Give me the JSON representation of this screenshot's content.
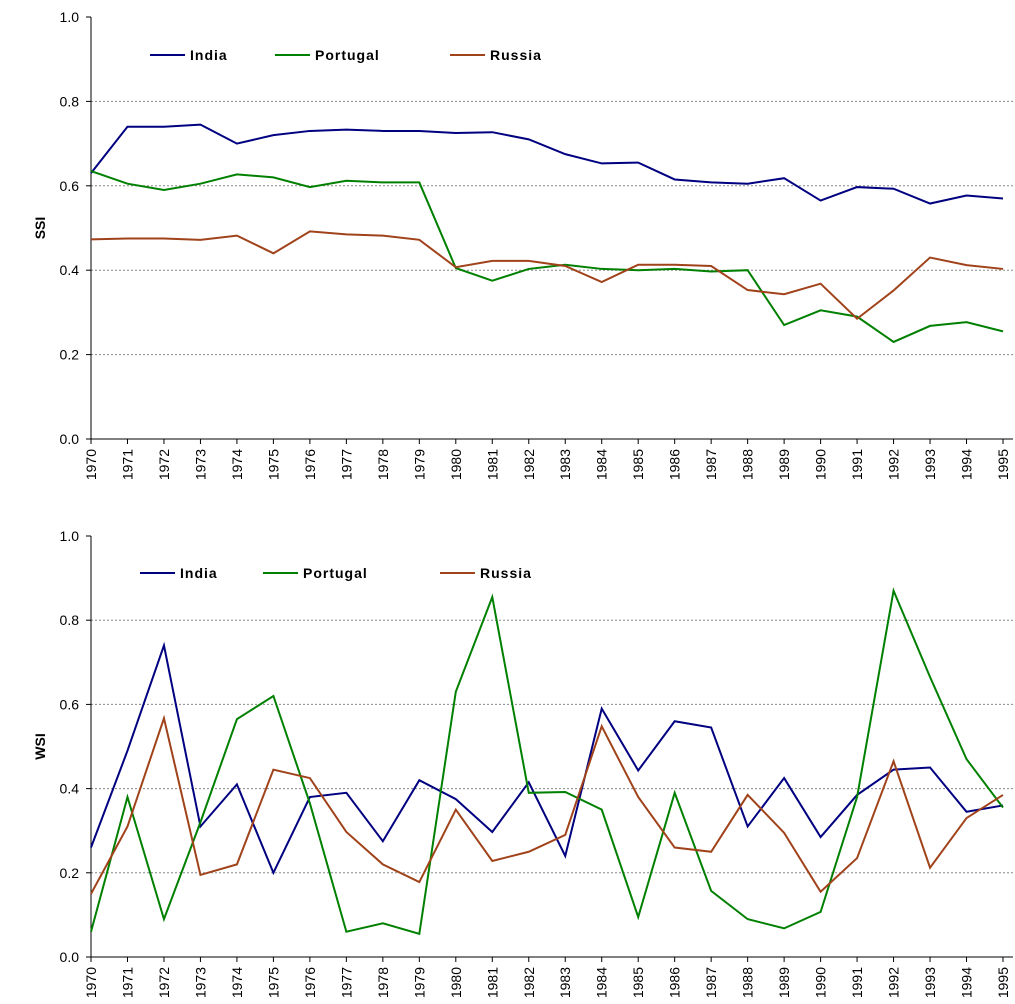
{
  "chart_data": [
    {
      "type": "line",
      "ylabel": "SSI",
      "categories": [
        "1970",
        "1971",
        "1972",
        "1973",
        "1974",
        "1975",
        "1976",
        "1977",
        "1978",
        "1979",
        "1980",
        "1981",
        "1982",
        "1983",
        "1984",
        "1985",
        "1986",
        "1987",
        "1988",
        "1989",
        "1990",
        "1991",
        "1992",
        "1993",
        "1994",
        "1995"
      ],
      "series": [
        {
          "name": "India",
          "color": "#000080",
          "values": [
            0.63,
            0.74,
            0.74,
            0.745,
            0.7,
            0.72,
            0.73,
            0.733,
            0.73,
            0.73,
            0.725,
            0.727,
            0.71,
            0.675,
            0.653,
            0.655,
            0.615,
            0.608,
            0.605,
            0.618,
            0.565,
            0.597,
            0.593,
            0.558,
            0.577,
            0.57
          ]
        },
        {
          "name": "Portugal",
          "color": "#008000",
          "values": [
            0.635,
            0.605,
            0.59,
            0.605,
            0.627,
            0.62,
            0.597,
            0.612,
            0.608,
            0.608,
            0.405,
            0.375,
            0.403,
            0.413,
            0.403,
            0.4,
            0.403,
            0.397,
            0.4,
            0.27,
            0.305,
            0.29,
            0.23,
            0.268,
            0.277,
            0.255
          ]
        },
        {
          "name": "Russia",
          "color": "#a0421a",
          "values": [
            0.473,
            0.475,
            0.475,
            0.472,
            0.482,
            0.44,
            0.492,
            0.485,
            0.482,
            0.472,
            0.407,
            0.422,
            0.422,
            0.41,
            0.372,
            0.413,
            0.413,
            0.41,
            0.353,
            0.343,
            0.368,
            0.285,
            0.352,
            0.43,
            0.412,
            0.403
          ]
        }
      ],
      "ylim": [
        0,
        1
      ],
      "yticks": [
        {
          "value": 0,
          "label": "0.0"
        },
        0.2,
        0.4,
        0.6,
        0.8,
        {
          "value": 1,
          "label": "1.0"
        }
      ],
      "grid": true,
      "legend": "top-left"
    },
    {
      "type": "line",
      "ylabel": "WSI",
      "categories": [
        "1970",
        "1971",
        "1972",
        "1973",
        "1974",
        "1975",
        "1976",
        "1977",
        "1978",
        "1979",
        "1980",
        "1981",
        "1982",
        "1983",
        "1984",
        "1985",
        "1986",
        "1987",
        "1988",
        "1989",
        "1990",
        "1991",
        "1992",
        "1993",
        "1994",
        "1995"
      ],
      "series": [
        {
          "name": "India",
          "color": "#000080",
          "values": [
            0.26,
            0.49,
            0.74,
            0.31,
            0.41,
            0.2,
            0.38,
            0.39,
            0.275,
            0.42,
            0.375,
            0.297,
            0.415,
            0.24,
            0.59,
            0.443,
            0.56,
            0.545,
            0.31,
            0.425,
            0.285,
            0.385,
            0.445,
            0.45,
            0.345,
            0.36
          ]
        },
        {
          "name": "Portugal",
          "color": "#008000",
          "values": [
            0.06,
            0.38,
            0.09,
            0.32,
            0.565,
            0.62,
            0.365,
            0.06,
            0.08,
            0.055,
            0.63,
            0.855,
            0.39,
            0.392,
            0.35,
            0.095,
            0.39,
            0.157,
            0.09,
            0.068,
            0.107,
            0.38,
            0.87,
            0.665,
            0.47,
            0.355
          ]
        },
        {
          "name": "Russia",
          "color": "#a0421a",
          "values": [
            0.15,
            0.31,
            0.567,
            0.195,
            0.22,
            0.445,
            0.425,
            0.297,
            0.22,
            0.178,
            0.35,
            0.228,
            0.25,
            0.29,
            0.548,
            0.38,
            0.26,
            0.25,
            0.385,
            0.295,
            0.155,
            0.235,
            0.465,
            0.212,
            0.33,
            0.385
          ]
        }
      ],
      "ylim": [
        0,
        1
      ],
      "yticks": [
        {
          "value": 0,
          "label": "0.0"
        },
        0.2,
        0.4,
        0.6,
        0.8,
        {
          "value": 1,
          "label": "1.0"
        }
      ],
      "grid": true,
      "legend": "top-left"
    }
  ]
}
